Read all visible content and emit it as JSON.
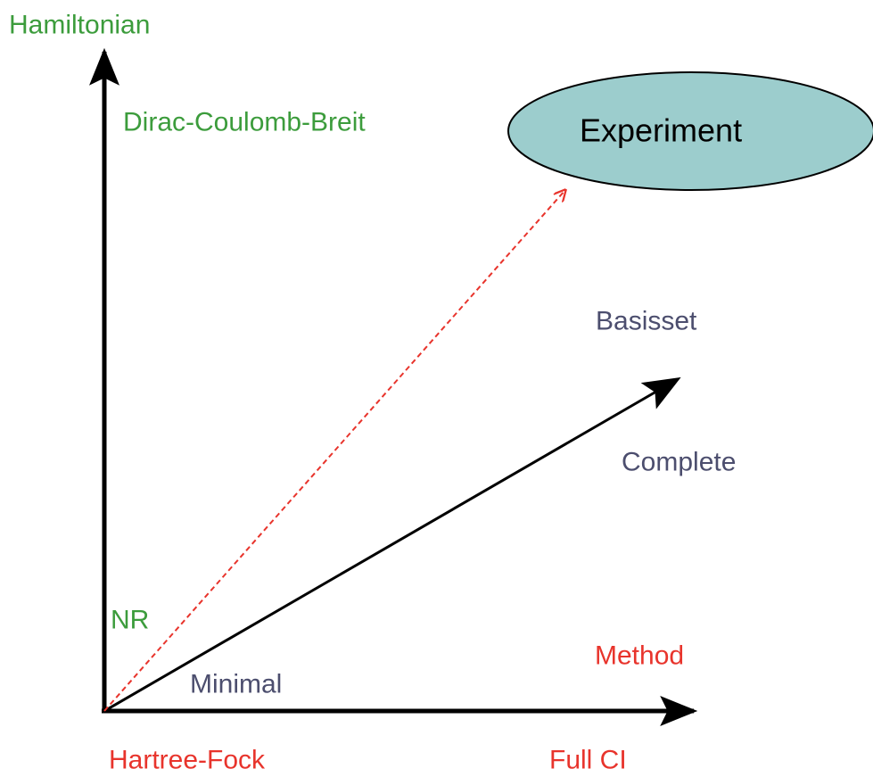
{
  "axes": {
    "hamiltonian": {
      "label": "Hamiltonian",
      "high": "Dirac-Coulomb-Breit",
      "low": "NR"
    },
    "method": {
      "label": "Method",
      "low": "Hartree-Fock",
      "high": "Full CI"
    },
    "basis": {
      "label": "Basisset",
      "low": "Minimal",
      "high": "Complete"
    }
  },
  "target": {
    "label": "Experiment"
  }
}
